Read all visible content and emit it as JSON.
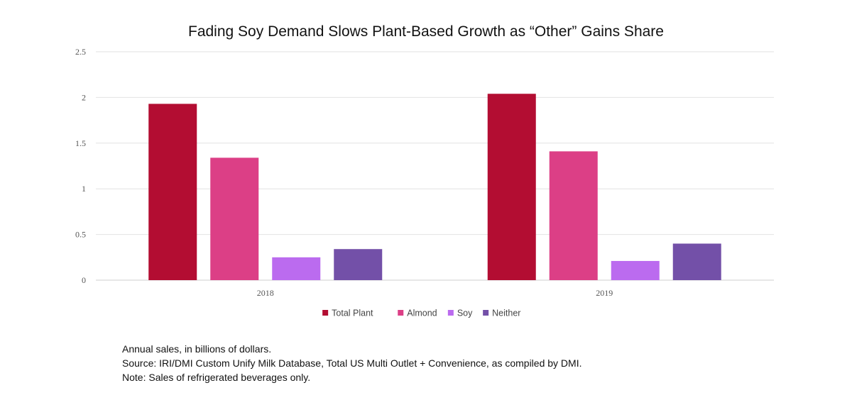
{
  "chart_data": {
    "type": "bar",
    "title": "Fading Soy Demand Slows Plant-Based Growth as “Other” Gains Share",
    "categories": [
      "2018",
      "2019"
    ],
    "series": [
      {
        "name": "Total Plant",
        "values": [
          1.93,
          2.04
        ],
        "color": "#b30d32"
      },
      {
        "name": "Almond",
        "values": [
          1.34,
          1.41
        ],
        "color": "#dc3f86"
      },
      {
        "name": "Soy",
        "values": [
          0.25,
          0.21
        ],
        "color": "#bb6bef"
      },
      {
        "name": "Neither",
        "values": [
          0.34,
          0.4
        ],
        "color": "#7350a8"
      }
    ],
    "ylim": [
      0,
      2.5
    ],
    "yticks": [
      "0",
      "0.5",
      "1",
      "1.5",
      "2",
      "2.5"
    ],
    "ytick_values": [
      0,
      0.5,
      1,
      1.5,
      2,
      2.5
    ],
    "xlabel": "",
    "ylabel": "",
    "grid": true,
    "legend_position": "bottom-center"
  },
  "notes": {
    "line1": "Annual sales, in billions of dollars.",
    "line2": "Source: IRI/DMI Custom Unify Milk Database, Total  US Multi Outlet + Convenience, as compiled by DMI.",
    "line3": "Note: Sales of refrigerated beverages only."
  }
}
